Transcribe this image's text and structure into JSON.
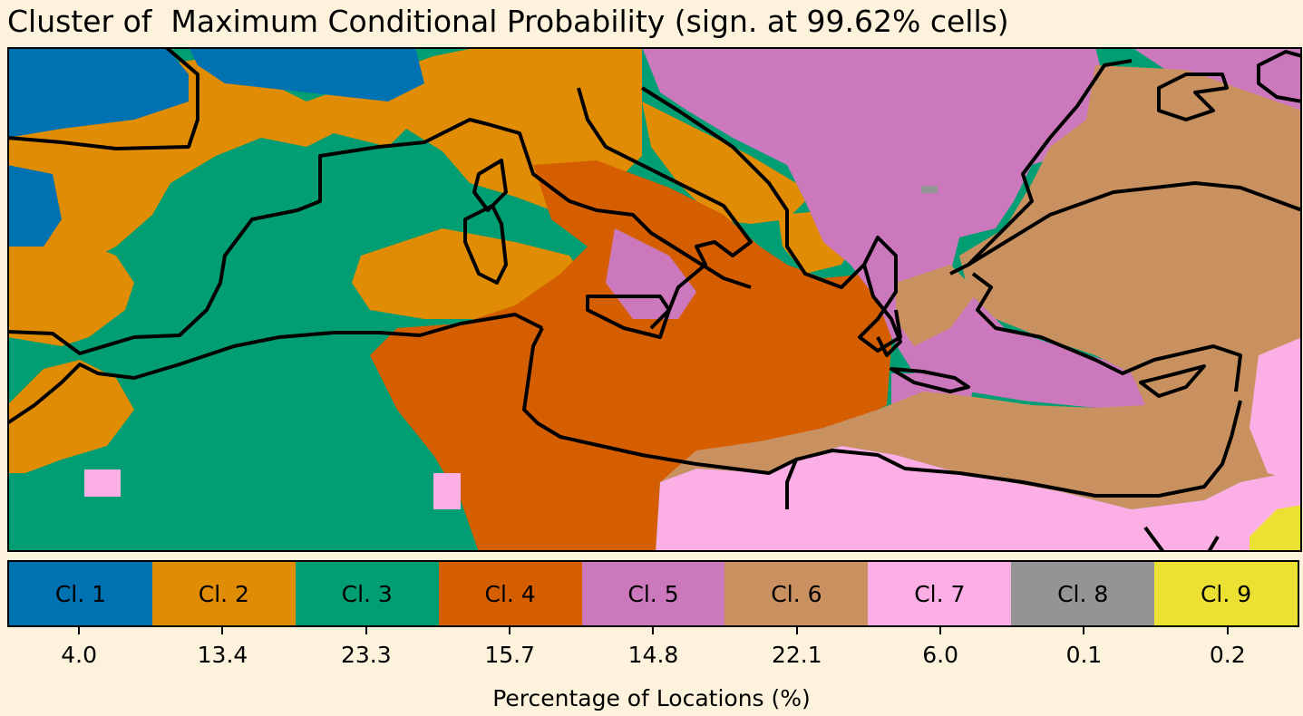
{
  "title": "Cluster of  Maximum Conditional Probability (sign. at 99.62% cells)",
  "colors": {
    "cl1": "#0072b2",
    "cl2": "#e08c04",
    "cl3": "#029e73",
    "cl4": "#d55e00",
    "cl5": "#cc78bc",
    "cl6": "#ca9160",
    "cl7": "#fbafe4",
    "cl8": "#949494",
    "cl9": "#ece133",
    "coastline": "#000000",
    "background": "#fdf3dc"
  },
  "legend": [
    {
      "label": "Cl. 1",
      "value": "4.0",
      "color": "#0072b2"
    },
    {
      "label": "Cl. 2",
      "value": "13.4",
      "color": "#e08c04"
    },
    {
      "label": "Cl. 3",
      "value": "23.3",
      "color": "#029e73"
    },
    {
      "label": "Cl. 4",
      "value": "15.7",
      "color": "#d55e00"
    },
    {
      "label": "Cl. 5",
      "value": "14.8",
      "color": "#cc78bc"
    },
    {
      "label": "Cl. 6",
      "value": "22.1",
      "color": "#ca9160"
    },
    {
      "label": "Cl. 7",
      "value": "6.0",
      "color": "#fbafe4"
    },
    {
      "label": "Cl. 8",
      "value": "0.1",
      "color": "#949494"
    },
    {
      "label": "Cl. 9",
      "value": "0.2",
      "color": "#ece133"
    }
  ],
  "xlabel": "Percentage of Locations (%)"
}
